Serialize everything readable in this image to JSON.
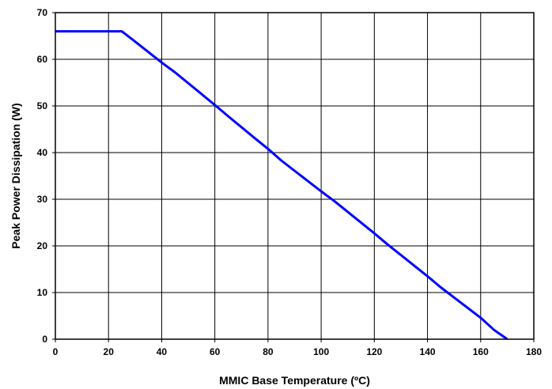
{
  "chart_data": {
    "type": "line",
    "title": "",
    "xlabel": "MMIC Base Temperature (ºC)",
    "ylabel": "Peak Power Dissipation (W)",
    "xlim": [
      0,
      180
    ],
    "ylim": [
      0,
      70
    ],
    "x_ticks": [
      0,
      20,
      40,
      60,
      80,
      100,
      120,
      140,
      160,
      180
    ],
    "y_ticks": [
      0,
      10,
      20,
      30,
      40,
      50,
      60,
      70
    ],
    "grid": true,
    "legend": "none",
    "line_color": "#0000ff",
    "series": [
      {
        "x": [
          0,
          25,
          30,
          40,
          45,
          60,
          65,
          75,
          80,
          85,
          100,
          105,
          120,
          125,
          140,
          145,
          160,
          165,
          170
        ],
        "y": [
          66,
          66,
          63.8,
          59.3,
          57.2,
          50.2,
          47.8,
          43.1,
          40.8,
          38.3,
          31.7,
          29.6,
          22.7,
          20.3,
          13.5,
          11.1,
          4.6,
          2,
          0
        ]
      }
    ]
  }
}
